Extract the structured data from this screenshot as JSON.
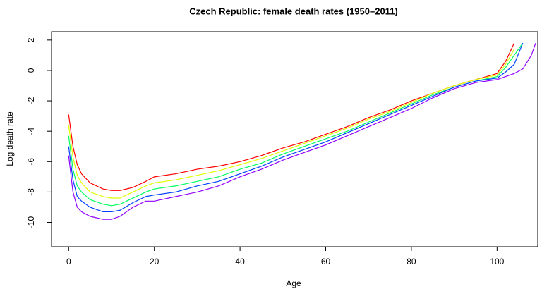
{
  "chart_data": {
    "type": "line",
    "title": "Czech Republic: female death rates  (1950–2011)",
    "x_label": "Age",
    "y_label": "Log death rate",
    "x": [
      0,
      1,
      2,
      3,
      5,
      8,
      10,
      12,
      15,
      18,
      20,
      25,
      30,
      35,
      40,
      45,
      50,
      55,
      60,
      65,
      70,
      75,
      80,
      85,
      90,
      95,
      100,
      102,
      104,
      106,
      108,
      109
    ],
    "series": [
      {
        "color": "#FF0000",
        "values": [
          -2.9,
          -5.0,
          -6.2,
          -6.8,
          -7.4,
          -7.8,
          -7.9,
          -7.9,
          -7.7,
          -7.3,
          -7.0,
          -6.8,
          -6.5,
          -6.3,
          -6.0,
          -5.6,
          -5.1,
          -4.7,
          -4.2,
          -3.7,
          -3.1,
          -2.6,
          -2.0,
          -1.5,
          -1.0,
          -0.6,
          -0.2,
          0.6,
          1.8,
          null,
          null,
          null
        ]
      },
      {
        "color": "#DFFF00",
        "values": [
          -3.6,
          -5.7,
          -6.9,
          -7.4,
          -8.0,
          -8.3,
          -8.4,
          -8.4,
          -8.0,
          -7.6,
          -7.4,
          -7.2,
          -6.9,
          -6.6,
          -6.2,
          -5.8,
          -5.3,
          -4.8,
          -4.3,
          -3.8,
          -3.2,
          -2.7,
          -2.1,
          -1.5,
          -1.0,
          -0.6,
          -0.3,
          0.4,
          1.4,
          null,
          null,
          null
        ]
      },
      {
        "color": "#00FF60",
        "values": [
          -4.3,
          -6.5,
          -7.6,
          -8.0,
          -8.5,
          -8.8,
          -8.9,
          -8.8,
          -8.4,
          -8.0,
          -7.8,
          -7.6,
          -7.3,
          -7.0,
          -6.5,
          -6.1,
          -5.5,
          -5.0,
          -4.5,
          -4.0,
          -3.4,
          -2.8,
          -2.2,
          -1.6,
          -1.1,
          -0.7,
          -0.4,
          0.2,
          1.0,
          1.8,
          null,
          null
        ]
      },
      {
        "color": "#0040FF",
        "values": [
          -5.0,
          -7.2,
          -8.3,
          -8.6,
          -9.0,
          -9.3,
          -9.3,
          -9.2,
          -8.7,
          -8.3,
          -8.2,
          -8.0,
          -7.6,
          -7.3,
          -6.8,
          -6.3,
          -5.7,
          -5.2,
          -4.7,
          -4.1,
          -3.5,
          -2.9,
          -2.3,
          -1.7,
          -1.1,
          -0.7,
          -0.5,
          -0.1,
          0.4,
          1.8,
          null,
          null
        ]
      },
      {
        "color": "#9000FF",
        "values": [
          -5.6,
          -8.0,
          -9.0,
          -9.3,
          -9.6,
          -9.8,
          -9.8,
          -9.6,
          -9.0,
          -8.6,
          -8.6,
          -8.3,
          -8.0,
          -7.6,
          -7.0,
          -6.5,
          -5.9,
          -5.4,
          -4.9,
          -4.3,
          -3.7,
          -3.1,
          -2.5,
          -1.8,
          -1.2,
          -0.8,
          -0.6,
          -0.4,
          -0.2,
          0.1,
          1.0,
          1.8
        ]
      }
    ],
    "xlim": [
      -4,
      109.5
    ],
    "ylim": [
      -11.6,
      2.55
    ],
    "xticks": [
      0,
      20,
      40,
      60,
      80,
      100
    ],
    "yticks": [
      -10,
      -8,
      -6,
      -4,
      -2,
      0,
      2
    ],
    "grid": false
  }
}
